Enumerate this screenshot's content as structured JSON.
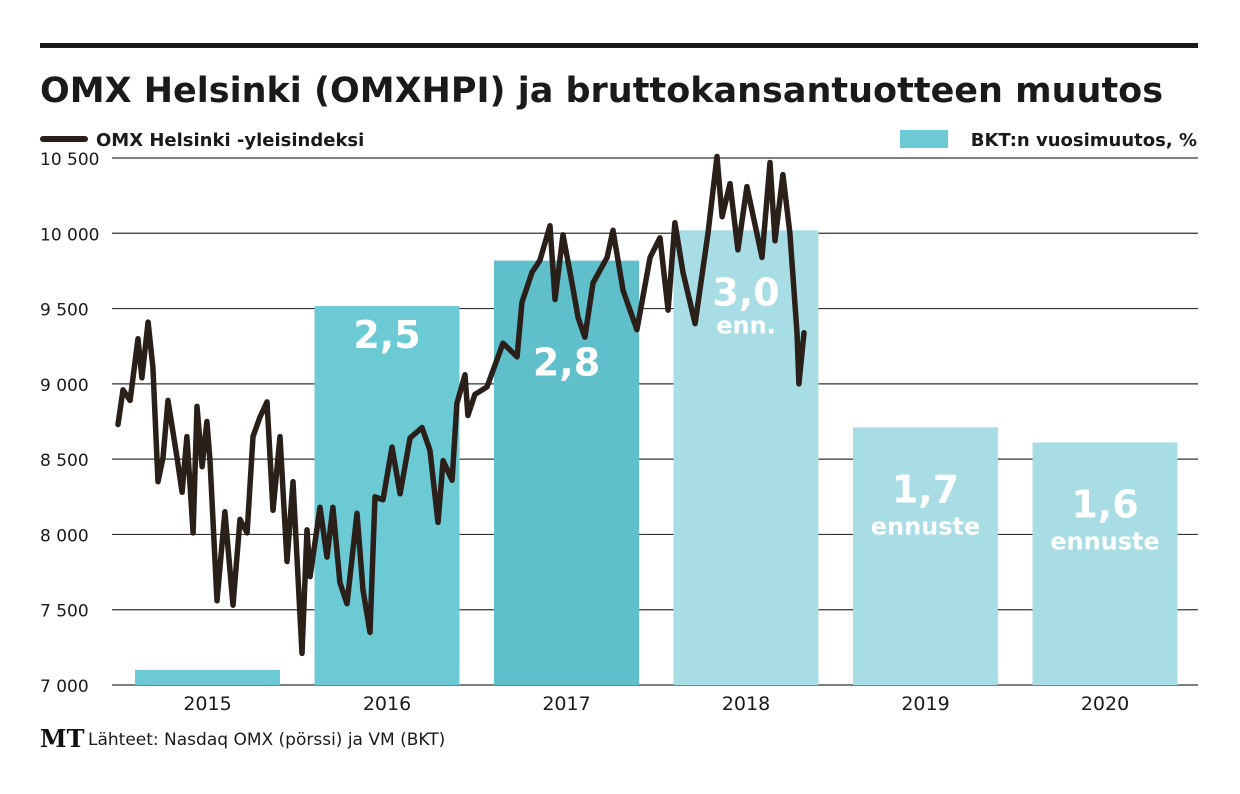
{
  "title": "OMX Helsinki (OMXHPI) ja bruttokansantuotteen muutos",
  "legend": {
    "line_label": "OMX Helsinki -yleisindeksi",
    "bar_label": "BKT:n vuosimuutos, %"
  },
  "source": {
    "logo": "MT",
    "text": "Lähteet: Nasdaq OMX (pörssi) ja VM (BKT)"
  },
  "colors": {
    "line": "#2b1f1a",
    "bar_actual": "#6ccad5",
    "bar_2017": "#5fc0cc",
    "bar_forecast": "#a8dde5",
    "label_teal": "#4fbcc9"
  },
  "chart_data": {
    "type": "bar+line",
    "title": "OMX Helsinki (OMXHPI) ja bruttokansantuotteen muutos",
    "yticks": [
      "7 000",
      "7 500",
      "8 000",
      "8 500",
      "9 000",
      "9 500",
      "10 000",
      "10 500"
    ],
    "ytick_values": [
      7000,
      7500,
      8000,
      8500,
      9000,
      9500,
      10000,
      10500
    ],
    "ylim": [
      7000,
      10500
    ],
    "bar_ylim": [
      0,
      3.477
    ],
    "grid": true,
    "categories": [
      "2015",
      "2016",
      "2017",
      "2018",
      "2019",
      "2020"
    ],
    "bars": [
      {
        "year": "2015",
        "value": 0.1,
        "label": "0,1",
        "sub": "",
        "kind": "actual"
      },
      {
        "year": "2016",
        "value": 2.5,
        "label": "2,5",
        "sub": "",
        "kind": "actual"
      },
      {
        "year": "2017",
        "value": 2.8,
        "label": "2,8",
        "sub": "",
        "kind": "actual2017"
      },
      {
        "year": "2018",
        "value": 3.0,
        "label": "3,0",
        "sub": "enn.",
        "kind": "forecast"
      },
      {
        "year": "2019",
        "value": 1.7,
        "label": "1,7",
        "sub": "ennuste",
        "kind": "forecast"
      },
      {
        "year": "2020",
        "value": 1.6,
        "label": "1,6",
        "sub": "ennuste",
        "kind": "forecast"
      }
    ],
    "line": {
      "name": "OMX Helsinki -yleisindeksi",
      "x": [
        2015.0,
        2015.028,
        2015.067,
        2015.111,
        2015.133,
        2015.167,
        2015.194,
        2015.222,
        2015.25,
        2015.278,
        2015.328,
        2015.356,
        2015.383,
        2015.417,
        2015.439,
        2015.467,
        2015.494,
        2015.511,
        2015.55,
        2015.594,
        2015.639,
        2015.678,
        2015.717,
        2015.75,
        2015.789,
        2015.828,
        2015.861,
        2015.9,
        2015.939,
        2015.972,
        2016.022,
        2016.05,
        2016.067,
        2016.122,
        2016.161,
        2016.194,
        2016.233,
        2016.272,
        2016.328,
        2016.361,
        2016.4,
        2016.428,
        2016.472,
        2016.522,
        2016.567,
        2016.622,
        2016.689,
        2016.733,
        2016.778,
        2016.806,
        2016.856,
        2016.883,
        2016.928,
        2016.944,
        2016.983,
        2017.05,
        2017.139,
        2017.217,
        2017.244,
        2017.3,
        2017.344,
        2017.4,
        2017.428,
        2017.472,
        2017.522,
        2017.556,
        2017.594,
        2017.639,
        2017.717,
        2017.75,
        2017.806,
        2017.883,
        2017.956,
        2018.011,
        2018.056,
        2018.094,
        2018.139,
        2018.206,
        2018.278,
        2018.328,
        2018.356,
        2018.4,
        2018.444,
        2018.494,
        2018.578,
        2018.622,
        2018.65,
        2018.694,
        2018.733,
        2018.772,
        2018.783,
        2018.811
      ],
      "y": [
        8730,
        8960,
        8890,
        9300,
        9040,
        9410,
        9110,
        8350,
        8510,
        8890,
        8510,
        8280,
        8650,
        8010,
        8850,
        8450,
        8750,
        8490,
        7560,
        8150,
        7530,
        8100,
        8010,
        8650,
        8780,
        8880,
        8160,
        8650,
        7820,
        8350,
        7210,
        8030,
        7720,
        8180,
        7850,
        8180,
        7680,
        7540,
        8140,
        7630,
        7350,
        8250,
        8230,
        8580,
        8270,
        8640,
        8710,
        8560,
        8080,
        8490,
        8360,
        8870,
        9060,
        8790,
        8930,
        8980,
        9270,
        9180,
        9540,
        9740,
        9820,
        10050,
        9560,
        9990,
        9670,
        9440,
        9310,
        9670,
        9840,
        10020,
        9620,
        9360,
        9840,
        9970,
        9490,
        10070,
        9740,
        9400,
        10000,
        10510,
        10110,
        10330,
        9890,
        10310,
        9840,
        10470,
        9950,
        10390,
        10000,
        9340,
        9000,
        9340
      ]
    }
  }
}
